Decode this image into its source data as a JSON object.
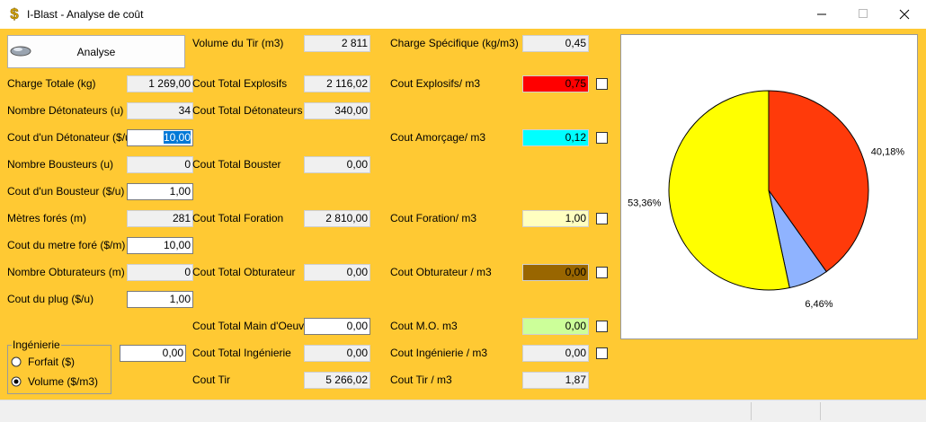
{
  "window": {
    "title": "I-Blast - Analyse de coût"
  },
  "form": {
    "analyse_button": "Analyse",
    "left": [
      {
        "label": "Charge Totale (kg)",
        "value": "1 269,00"
      },
      {
        "label": "Nombre Détonateurs (u)",
        "value": "34"
      },
      {
        "label": "Cout d'un Détonateur ($/u)",
        "value": "10,00"
      },
      {
        "label": "Nombre Bousteurs (u)",
        "value": "0"
      },
      {
        "label": "Cout d'un Bousteur ($/u)",
        "value": "1,00"
      },
      {
        "label": "Mètres forés (m)",
        "value": "281"
      },
      {
        "label": "Cout du metre foré ($/m)",
        "value": "10,00"
      },
      {
        "label": "Nombre Obturateurs (m)",
        "value": "0"
      },
      {
        "label": "Cout du plug ($/u)",
        "value": "1,00"
      }
    ],
    "middle": [
      {
        "label": "Volume du Tir (m3)",
        "value": "2 811"
      },
      {
        "label": "Cout Total Explosifs",
        "value": "2 116,02"
      },
      {
        "label": "Cout Total Détonateurs",
        "value": "340,00"
      },
      {
        "label": "Cout Total Bouster",
        "value": "0,00"
      },
      {
        "label": "Cout Total Foration",
        "value": "2 810,00"
      },
      {
        "label": "Cout Total Obturateur",
        "value": "0,00"
      },
      {
        "label": "Cout Total Main d'Oeuvre",
        "value": "0,00"
      },
      {
        "label": "Cout Total Ingénierie",
        "value": "0,00"
      },
      {
        "label": "Cout Tir",
        "value": "5 266,02"
      }
    ],
    "right": [
      {
        "label": "Charge Spécifique (kg/m3)",
        "value": "0,45"
      },
      {
        "label": "Cout Explosifs/ m3",
        "value": "0,75"
      },
      {
        "label": "Cout Amorçage/ m3",
        "value": "0,12"
      },
      {
        "label": "Cout Foration/ m3",
        "value": "1,00"
      },
      {
        "label": "Cout Obturateur / m3",
        "value": "0,00"
      },
      {
        "label": "Cout M.O. m3",
        "value": "0,00"
      },
      {
        "label": "Cout Ingénierie / m3",
        "value": "0,00"
      },
      {
        "label": "Cout Tir / m3",
        "value": "1,87"
      }
    ],
    "engineering": {
      "title": "Ingénierie",
      "value": "0,00",
      "options": [
        "Forfait ($)",
        "Volume ($/m3)"
      ]
    }
  },
  "chart_data": {
    "type": "pie",
    "values": [
      40.18,
      6.46,
      53.36
    ],
    "value_labels": [
      "40,18%",
      "6,46%",
      "53,36%"
    ],
    "colors": [
      "#ff3a0a",
      "#8fb3ff",
      "#ffff00"
    ]
  }
}
